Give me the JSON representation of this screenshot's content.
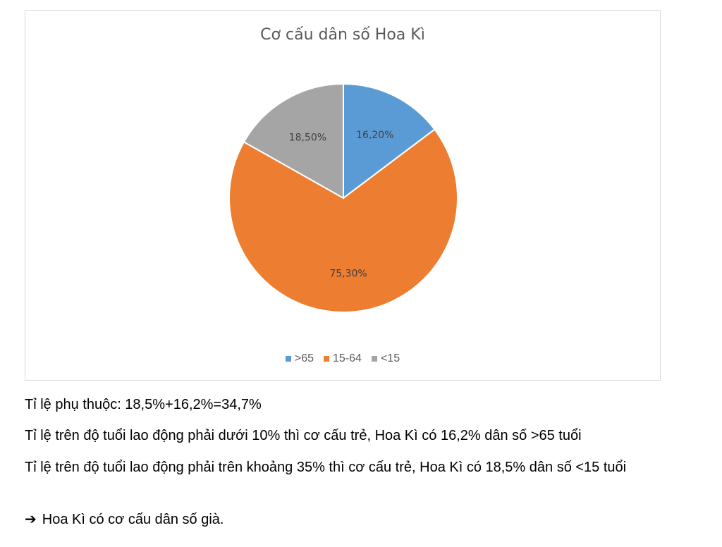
{
  "chart_data": {
    "type": "pie",
    "title": "Cơ cấu dân số Hoa Kì",
    "categories": [
      ">65",
      "15-64",
      "<15"
    ],
    "values": [
      16.2,
      75.3,
      18.5
    ],
    "data_labels": [
      "16,20%",
      "75,30%",
      "18,50%"
    ],
    "colors": [
      "#5b9bd5",
      "#ed7d31",
      "#a5a5a5"
    ],
    "legend_position": "bottom"
  },
  "text": {
    "line1": "Tỉ lệ phụ thuộc: 18,5%+16,2%=34,7%",
    "line2": "Tỉ lệ trên độ tuổi lao động phải dưới 10% thì cơ cấu trẻ, Hoa Kì có 16,2% dân số >65 tuổi",
    "line3": "Tỉ lệ trên độ tuổi lao động phải trên khoảng 35% thì cơ cấu trẻ, Hoa Kì có 18,5% dân số <15 tuổi",
    "conclusion": "Hoa Kì có cơ cấu dân số già."
  },
  "icons": {
    "conclusion_arrow": "arrow-right-icon"
  }
}
